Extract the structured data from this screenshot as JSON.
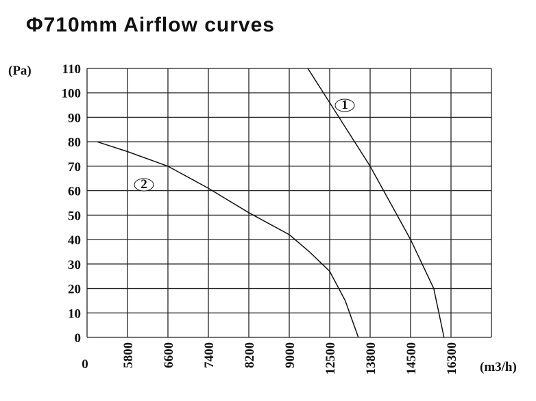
{
  "chart_data": {
    "type": "line",
    "title": "Φ710mm Airflow curves",
    "xlabel": "(m3/h)",
    "ylabel": "(Pa)",
    "x_ticks": [
      0,
      5800,
      6600,
      7400,
      8200,
      9000,
      12500,
      13800,
      14500,
      16300
    ],
    "y_ticks": [
      0,
      10,
      20,
      30,
      40,
      50,
      60,
      70,
      80,
      90,
      100,
      110
    ],
    "ylim": [
      0,
      110
    ],
    "grid": true,
    "x_axis_note": "tick labels equally spaced (non-linear scale)",
    "series": [
      {
        "name": "1",
        "points": [
          [
            10610,
            110
          ],
          [
            12500,
            96
          ],
          [
            13800,
            70
          ],
          [
            14150,
            55
          ],
          [
            14500,
            40
          ],
          [
            15530,
            20
          ],
          [
            15990,
            0
          ]
        ]
      },
      {
        "name": "2",
        "points": [
          [
            1450,
            80
          ],
          [
            5800,
            76
          ],
          [
            6600,
            70
          ],
          [
            7400,
            61
          ],
          [
            8200,
            51
          ],
          [
            9000,
            42
          ],
          [
            10750,
            35
          ],
          [
            12500,
            27
          ],
          [
            13000,
            15
          ],
          [
            13420,
            0
          ]
        ]
      }
    ]
  }
}
